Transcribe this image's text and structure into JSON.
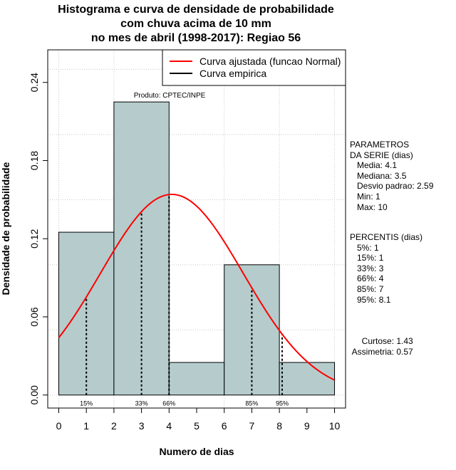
{
  "title_lines": [
    "Histograma e curva de densidade de probabilidade",
    "com chuva acima de 10 mm",
    "no mes de abril (1998-2017): Regiao 56"
  ],
  "chart_data": {
    "type": "bar",
    "subtype": "histogram_with_density",
    "xlabel": "Numero de dias",
    "ylabel": "Densidade de probabilidade",
    "xlim": [
      -0.4,
      10.4
    ],
    "ylim": [
      -0.01,
      0.265
    ],
    "x_ticks": [
      0,
      1,
      2,
      3,
      4,
      5,
      6,
      7,
      8,
      9,
      10
    ],
    "y_ticks": [
      0.0,
      0.06,
      0.12,
      0.18,
      0.24
    ],
    "y_tick_labels": [
      "0.00",
      "0.06",
      "0.12",
      "0.18",
      "0.24"
    ],
    "bins": [
      {
        "x0": 0,
        "x1": 2,
        "density": 0.125
      },
      {
        "x0": 2,
        "x1": 4,
        "density": 0.225
      },
      {
        "x0": 4,
        "x1": 6,
        "density": 0.025
      },
      {
        "x0": 6,
        "x1": 8,
        "density": 0.1
      },
      {
        "x0": 8,
        "x1": 10,
        "density": 0.025
      }
    ],
    "fitted_curve": {
      "name": "Curva ajustada (funcao Normal)",
      "mean": 4.1,
      "sd": 2.59,
      "x_range": [
        0,
        10
      ]
    },
    "empirical_curve": {
      "name": "Curva empirica"
    },
    "percentile_markers": [
      {
        "label": "15%",
        "x": 1
      },
      {
        "label": "33%",
        "x": 3
      },
      {
        "label": "66%",
        "x": 4
      },
      {
        "label": "85%",
        "x": 7
      },
      {
        "label": "95%",
        "x": 8.1
      }
    ],
    "annotation": "Produto: CPTEC/INPE",
    "legend_position": "top-right",
    "grid": true,
    "colors": {
      "bar_fill": "#b6cccc",
      "fitted": "#ff0000",
      "empirical": "#000000",
      "grid": "#c8c8c8"
    }
  },
  "side_panel": {
    "params_text": "PARAMETROS\nDA SERIE (dias)\n   Media: 4.1\n   Mediana: 3.5\n   Desvio padrao: 2.59\n   Min: 1\n   Max: 10",
    "percentis_text": "PERCENTIS (dias)\n   5%: 1\n   15%: 1\n   33%: 3\n   66%: 4\n   85%: 7\n   95%: 8.1",
    "stats_text": "     Curtose: 1.43\n Assimetria: 0.57"
  }
}
